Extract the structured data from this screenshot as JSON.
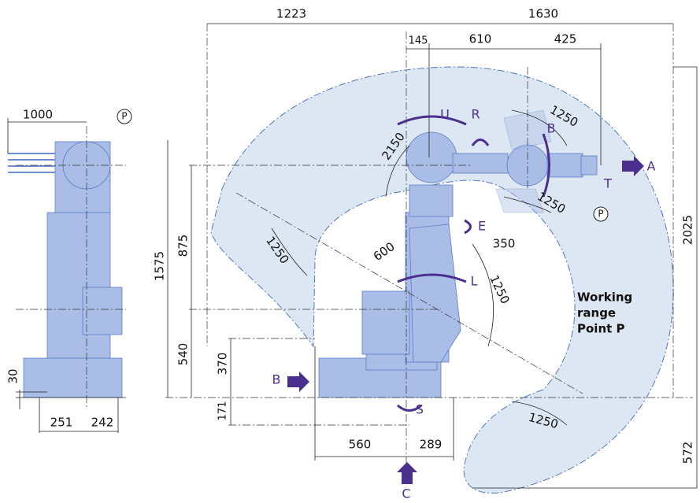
{
  "side_view": {
    "dim_top": 1000,
    "point": "P",
    "dim_left": 30,
    "dim_bottom_left": 251,
    "dim_bottom_right": 242
  },
  "main_view": {
    "dim_top_left": 1223,
    "dim_top_right": 1630,
    "dim_145": 145,
    "dim_610": 610,
    "dim_425": 425,
    "dim_arc_upper_right": 1250,
    "dim_arc_upper": 2150,
    "dim_arc_lower_right": 1250,
    "dim_350": 350,
    "dim_600": 600,
    "dim_arc_left": 1250,
    "dim_arc_center": 1250,
    "dim_arc_bottom": 1250,
    "dim_875": 875,
    "dim_1575": 1575,
    "dim_540": 540,
    "dim_370": 370,
    "dim_171": 171,
    "dim_2025": 2025,
    "dim_572": 572,
    "dim_560": 560,
    "dim_289": 289,
    "point": "P",
    "axes": {
      "U": "U",
      "R": "R",
      "B": "B",
      "T": "T",
      "E": "E",
      "L": "L",
      "S": "S"
    },
    "view_a": "A",
    "view_b": "B",
    "view_c": "C",
    "working_range": [
      "Working",
      "range",
      "Point P"
    ]
  }
}
